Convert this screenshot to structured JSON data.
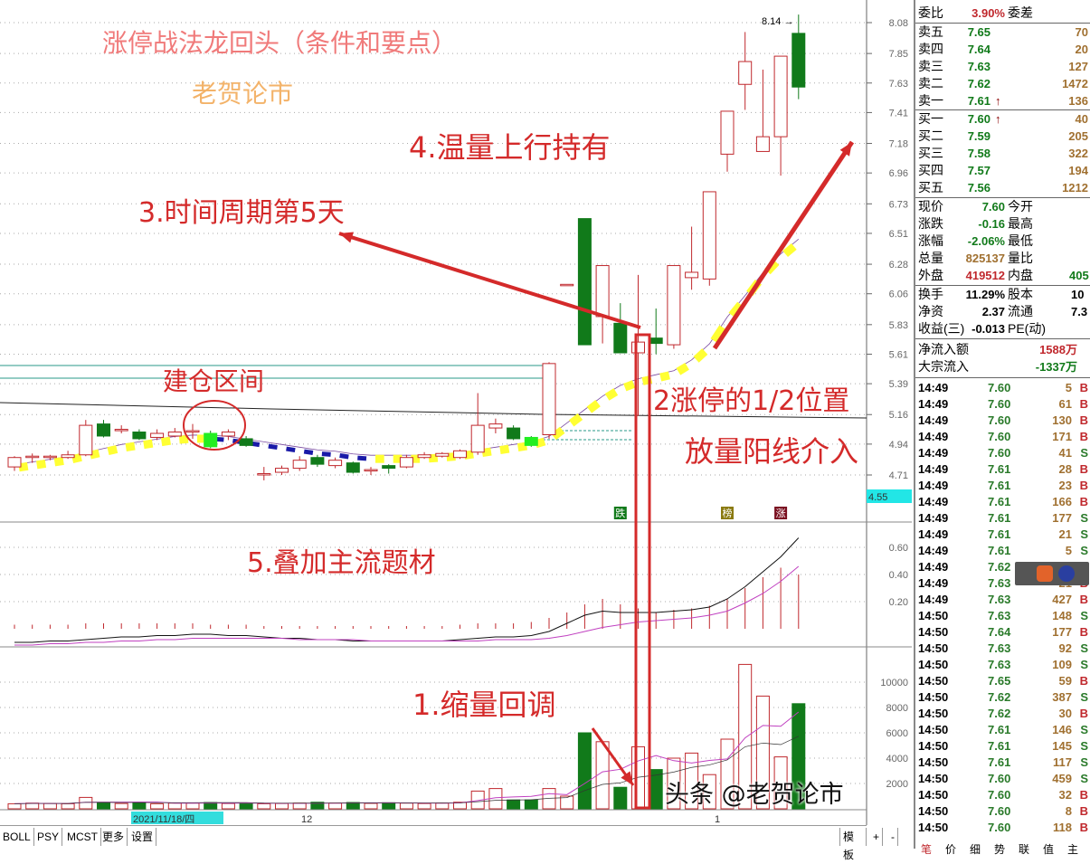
{
  "annotations": {
    "title": "涨停战法龙回头（条件和要点）",
    "author": "老贺论市",
    "step4": "4.温量上行持有",
    "step3": "3.时间周期第5天",
    "zone": "建仓区间",
    "step2a": "2涨停的1/2位置",
    "step2b": "放量阳线介入",
    "step5": "5.叠加主流题材",
    "step1": "1.缩量回调"
  },
  "colors": {
    "up": "#c0282d",
    "down": "#117a1a",
    "ma_up": "#ffff33",
    "ma_down": "#1a1aa8",
    "annotation": "#d42a2a",
    "title": "#f07a7a",
    "author": "#f3b36a"
  },
  "chart_data": {
    "type": "candlestick",
    "price_axis": {
      "ticks": [
        "8.08",
        "7.85",
        "7.63",
        "7.41",
        "7.18",
        "6.96",
        "6.73",
        "6.51",
        "6.28",
        "6.06",
        "5.83",
        "5.61",
        "5.39",
        "5.16",
        "4.94",
        "4.71"
      ],
      "range": [
        4.71,
        8.08
      ],
      "cursor_label": "4.55",
      "high_label": "8.14"
    },
    "x_labels": [
      "2021/11/18/四",
      "12",
      "1"
    ],
    "candles": [
      [
        4.77,
        4.84,
        4.85,
        4.74
      ],
      [
        4.84,
        4.85,
        4.87,
        4.8
      ],
      [
        4.84,
        4.85,
        4.86,
        4.82
      ],
      [
        4.84,
        4.86,
        4.89,
        4.83
      ],
      [
        4.86,
        5.08,
        5.12,
        4.85
      ],
      [
        5.09,
        5.0,
        5.12,
        4.99
      ],
      [
        5.04,
        5.05,
        5.08,
        5.02
      ],
      [
        5.03,
        4.98,
        5.05,
        4.97
      ],
      [
        4.99,
        5.02,
        5.05,
        4.97
      ],
      [
        5.0,
        5.03,
        5.06,
        4.99
      ],
      [
        5.04,
        5.04,
        5.09,
        4.98
      ],
      [
        5.02,
        4.92,
        5.04,
        4.91
      ],
      [
        5.0,
        5.03,
        5.05,
        4.97
      ],
      [
        4.98,
        4.93,
        5.0,
        4.92
      ],
      [
        4.72,
        4.72,
        4.77,
        4.67
      ],
      [
        4.73,
        4.76,
        4.78,
        4.71
      ],
      [
        4.76,
        4.82,
        4.85,
        4.74
      ],
      [
        4.84,
        4.79,
        4.86,
        4.77
      ],
      [
        4.78,
        4.82,
        4.84,
        4.76
      ],
      [
        4.8,
        4.73,
        4.81,
        4.72
      ],
      [
        4.74,
        4.75,
        4.77,
        4.71
      ],
      [
        4.78,
        4.76,
        4.79,
        4.72
      ],
      [
        4.77,
        4.84,
        4.86,
        4.76
      ],
      [
        4.84,
        4.86,
        4.88,
        4.83
      ],
      [
        4.85,
        4.87,
        4.88,
        4.84
      ],
      [
        4.84,
        4.89,
        4.9,
        4.83
      ],
      [
        4.88,
        5.08,
        5.32,
        4.86
      ],
      [
        5.06,
        5.09,
        5.13,
        5.02
      ],
      [
        5.06,
        4.98,
        5.08,
        4.97
      ],
      [
        4.99,
        4.93,
        5.0,
        4.92
      ],
      [
        5.01,
        5.54,
        5.55,
        4.98
      ],
      [
        6.13,
        6.13,
        6.13,
        6.13
      ],
      [
        6.62,
        5.68,
        6.62,
        5.68
      ],
      [
        5.89,
        6.27,
        6.27,
        5.69
      ],
      [
        5.84,
        5.62,
        5.99,
        5.62
      ],
      [
        5.62,
        5.7,
        6.2,
        5.15
      ],
      [
        5.73,
        5.69,
        5.95,
        5.61
      ],
      [
        5.68,
        6.27,
        6.27,
        5.65
      ],
      [
        6.18,
        6.22,
        6.56,
        6.09
      ],
      [
        6.17,
        6.82,
        6.82,
        6.12
      ],
      [
        7.1,
        7.42,
        7.42,
        6.97
      ],
      [
        7.62,
        7.79,
        8.01,
        7.43
      ],
      [
        7.12,
        7.23,
        7.73,
        7.12
      ],
      [
        7.23,
        7.83,
        7.83,
        6.94
      ],
      [
        8.0,
        7.6,
        8.14,
        7.51
      ]
    ],
    "ma": [
      4.76,
      4.78,
      4.8,
      4.82,
      4.85,
      4.88,
      4.91,
      4.93,
      4.95,
      4.97,
      4.98,
      4.98,
      4.97,
      4.95,
      4.93,
      4.91,
      4.89,
      4.87,
      4.86,
      4.84,
      4.83,
      4.83,
      4.83,
      4.83,
      4.84,
      4.85,
      4.87,
      4.89,
      4.91,
      4.93,
      4.97,
      5.07,
      5.17,
      5.27,
      5.35,
      5.4,
      5.43,
      5.46,
      5.54,
      5.66,
      5.86,
      6.02,
      6.19,
      6.33,
      6.44
    ],
    "signals": [
      {
        "index": 34,
        "label": "跌",
        "color": "#117a1a"
      },
      {
        "index": 40,
        "label": "榜",
        "color": "#8a7a10"
      },
      {
        "index": 43,
        "label": "涨",
        "color": "#7a1020"
      }
    ],
    "indicator": {
      "ticks": [
        "0.60",
        "0.40",
        "0.20"
      ],
      "dif": [
        -0.1,
        -0.1,
        -0.09,
        -0.09,
        -0.08,
        -0.07,
        -0.06,
        -0.06,
        -0.05,
        -0.05,
        -0.04,
        -0.04,
        -0.05,
        -0.05,
        -0.06,
        -0.07,
        -0.07,
        -0.08,
        -0.08,
        -0.09,
        -0.09,
        -0.09,
        -0.09,
        -0.09,
        -0.09,
        -0.08,
        -0.07,
        -0.06,
        -0.06,
        -0.05,
        -0.02,
        0.04,
        0.1,
        0.13,
        0.12,
        0.12,
        0.12,
        0.13,
        0.14,
        0.16,
        0.22,
        0.31,
        0.42,
        0.53,
        0.67
      ],
      "dea": [
        -0.12,
        -0.12,
        -0.11,
        -0.11,
        -0.1,
        -0.1,
        -0.09,
        -0.09,
        -0.08,
        -0.08,
        -0.07,
        -0.07,
        -0.07,
        -0.07,
        -0.07,
        -0.07,
        -0.08,
        -0.08,
        -0.08,
        -0.08,
        -0.09,
        -0.09,
        -0.09,
        -0.09,
        -0.09,
        -0.09,
        -0.09,
        -0.08,
        -0.08,
        -0.08,
        -0.07,
        -0.05,
        -0.02,
        0.01,
        0.03,
        0.05,
        0.06,
        0.07,
        0.08,
        0.1,
        0.13,
        0.19,
        0.26,
        0.35,
        0.46
      ],
      "bars": [
        0.03,
        0.03,
        0.03,
        0.03,
        0.04,
        0.04,
        0.04,
        0.04,
        0.04,
        0.04,
        0.04,
        0.03,
        0.03,
        0.03,
        0.02,
        0.02,
        0.02,
        0.02,
        0.02,
        0.02,
        0.02,
        0.02,
        0.02,
        0.02,
        0.02,
        0.03,
        0.04,
        0.04,
        0.04,
        0.05,
        0.08,
        0.12,
        0.18,
        0.22,
        0.18,
        0.15,
        0.12,
        0.14,
        0.15,
        0.17,
        0.22,
        0.3,
        0.38,
        0.45,
        0.4
      ]
    },
    "volume": {
      "ticks": [
        "10000",
        "8000",
        "6000",
        "4000",
        "2000"
      ],
      "values": [
        400,
        450,
        420,
        400,
        900,
        480,
        420,
        500,
        400,
        450,
        450,
        500,
        420,
        450,
        400,
        420,
        450,
        520,
        450,
        500,
        430,
        480,
        450,
        420,
        450,
        520,
        1400,
        1600,
        700,
        700,
        1600,
        1000,
        6000,
        5300,
        1700,
        4900,
        3100,
        4000,
        4400,
        2700,
        5500,
        11400,
        8900,
        4100,
        8300
      ]
    }
  },
  "quote": {
    "weibi": {
      "label": "委比",
      "value": "3.90%",
      "label2": "委差"
    },
    "asks": [
      {
        "label": "卖五",
        "price": "7.65",
        "vol": "70"
      },
      {
        "label": "卖四",
        "price": "7.64",
        "vol": "20"
      },
      {
        "label": "卖三",
        "price": "7.63",
        "vol": "127"
      },
      {
        "label": "卖二",
        "price": "7.62",
        "vol": "1472"
      },
      {
        "label": "卖一",
        "price": "7.61",
        "vol": "136",
        "arrow": "↑"
      }
    ],
    "bids": [
      {
        "label": "买一",
        "price": "7.60",
        "vol": "40",
        "arrow": "↑"
      },
      {
        "label": "买二",
        "price": "7.59",
        "vol": "205"
      },
      {
        "label": "买三",
        "price": "7.58",
        "vol": "322"
      },
      {
        "label": "买四",
        "price": "7.57",
        "vol": "194"
      },
      {
        "label": "买五",
        "price": "7.56",
        "vol": "1212"
      }
    ],
    "stats": [
      {
        "l": "现价",
        "v": "7.60",
        "l2": "今开",
        "v2": "",
        "c": "#117a1a"
      },
      {
        "l": "涨跌",
        "v": "-0.16",
        "l2": "最高",
        "v2": "",
        "c": "#117a1a"
      },
      {
        "l": "涨幅",
        "v": "-2.06%",
        "l2": "最低",
        "v2": "",
        "c": "#117a1a"
      },
      {
        "l": "总量",
        "v": "825137",
        "l2": "量比",
        "v2": "",
        "c": "#a07030"
      },
      {
        "l": "外盘",
        "v": "419512",
        "l2": "内盘",
        "v2": "405",
        "c": "#c0282d"
      }
    ],
    "fund": [
      {
        "l": "换手",
        "v": "11.29%",
        "l2": "股本",
        "v2": "10"
      },
      {
        "l": "净资",
        "v": "2.37",
        "l2": "流通",
        "v2": "7.3"
      },
      {
        "l": "收益(三)",
        "v": "-0.013",
        "l2": "PE(动)",
        "v2": ""
      }
    ],
    "flow": [
      {
        "l": "净流入额",
        "v": "1588万",
        "c": "#c0282d"
      },
      {
        "l": "大宗流入",
        "v": "-1337万",
        "c": "#117a1a"
      }
    ]
  },
  "trades": [
    [
      "14:49",
      "7.60",
      "5",
      "B"
    ],
    [
      "14:49",
      "7.60",
      "61",
      "B"
    ],
    [
      "14:49",
      "7.60",
      "130",
      "B"
    ],
    [
      "14:49",
      "7.60",
      "171",
      "B"
    ],
    [
      "14:49",
      "7.60",
      "41",
      "S"
    ],
    [
      "14:49",
      "7.61",
      "28",
      "B"
    ],
    [
      "14:49",
      "7.61",
      "23",
      "B"
    ],
    [
      "14:49",
      "7.61",
      "166",
      "B"
    ],
    [
      "14:49",
      "7.61",
      "177",
      "S"
    ],
    [
      "14:49",
      "7.61",
      "21",
      "S"
    ],
    [
      "14:49",
      "7.61",
      "5",
      "S"
    ],
    [
      "14:49",
      "7.62",
      "",
      ""
    ],
    [
      "14:49",
      "7.63",
      "21",
      "B"
    ],
    [
      "14:49",
      "7.63",
      "427",
      "B"
    ],
    [
      "14:50",
      "7.63",
      "148",
      "S"
    ],
    [
      "14:50",
      "7.64",
      "177",
      "B"
    ],
    [
      "14:50",
      "7.63",
      "92",
      "S"
    ],
    [
      "14:50",
      "7.63",
      "109",
      "S"
    ],
    [
      "14:50",
      "7.65",
      "59",
      "B"
    ],
    [
      "14:50",
      "7.62",
      "387",
      "S"
    ],
    [
      "14:50",
      "7.62",
      "30",
      "B"
    ],
    [
      "14:50",
      "7.61",
      "146",
      "S"
    ],
    [
      "14:50",
      "7.61",
      "145",
      "S"
    ],
    [
      "14:50",
      "7.61",
      "117",
      "S"
    ],
    [
      "14:50",
      "7.60",
      "459",
      "S"
    ],
    [
      "14:50",
      "7.60",
      "32",
      "B"
    ],
    [
      "14:50",
      "7.60",
      "8",
      "B"
    ],
    [
      "14:50",
      "7.60",
      "118",
      "B"
    ]
  ],
  "toolbar": {
    "tabs": [
      "BOLL",
      "PSY",
      "MCST",
      "更多",
      "设置"
    ],
    "template": "模板",
    "plus": "+",
    "minus": "-"
  },
  "bottom_tabs": [
    "笔",
    "价",
    "细",
    "势",
    "联",
    "值",
    "主"
  ],
  "watermark": "头条 @老贺论市"
}
